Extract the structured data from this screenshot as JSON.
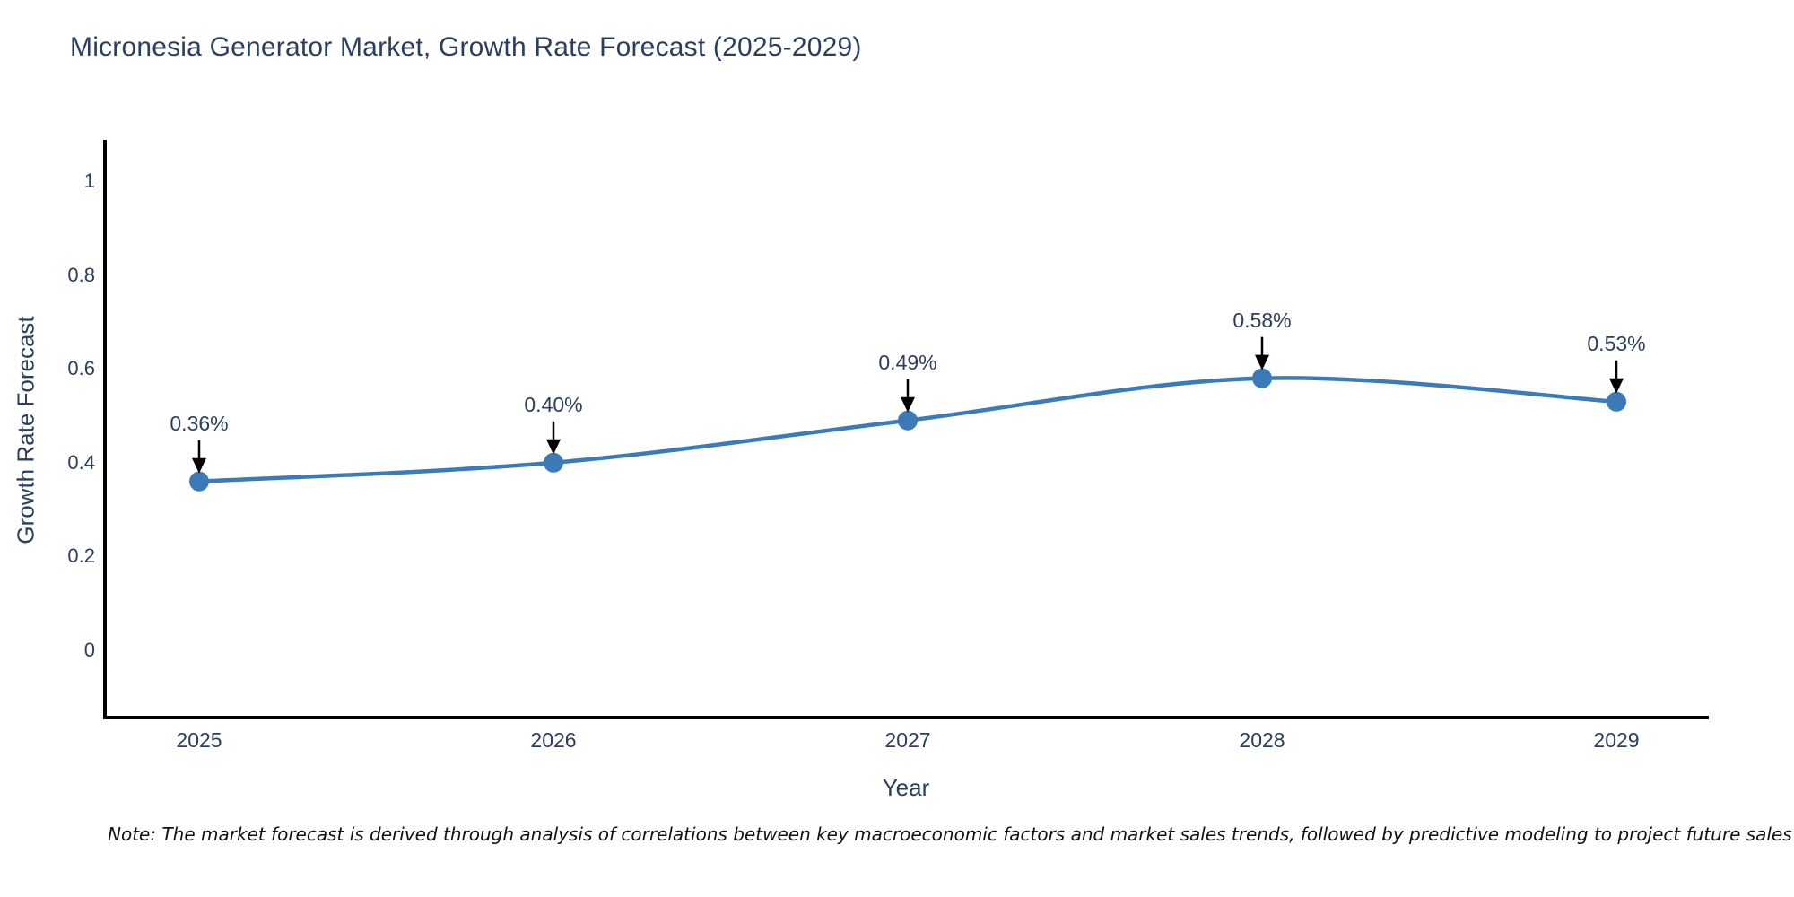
{
  "title": "Micronesia Generator Market, Growth Rate Forecast (2025-2029)",
  "note": "Note: The market forecast is derived through analysis of correlations between key macroeconomic factors and market sales trends, followed by predictive modeling to project future sales",
  "chart_data": {
    "type": "line",
    "title": "Micronesia Generator Market, Growth Rate Forecast (2025-2029)",
    "xlabel": "Year",
    "ylabel": "Growth Rate Forecast",
    "categories": [
      "2025",
      "2026",
      "2027",
      "2028",
      "2029"
    ],
    "x": [
      2025,
      2026,
      2027,
      2028,
      2029
    ],
    "series": [
      {
        "name": "Growth Rate Forecast",
        "values": [
          0.36,
          0.4,
          0.49,
          0.58,
          0.53
        ]
      }
    ],
    "point_labels": [
      "0.36%",
      "0.40%",
      "0.49%",
      "0.58%",
      "0.53%"
    ],
    "ytick_labels": [
      "0",
      "0.2",
      "0.4",
      "0.6",
      "0.8",
      "1"
    ],
    "yticks": [
      0,
      0.2,
      0.4,
      0.6,
      0.8,
      1
    ],
    "ylim": [
      -0.145,
      1.09
    ],
    "grid": false,
    "legend_position": "none",
    "line_shape": "spline",
    "colors": {
      "line": "#3b7cb8",
      "marker": "#3a7ab6",
      "axis": "#000000",
      "text": "#2a3f5f",
      "annotation_arrow": "#000000",
      "note_text": "#111111",
      "background": "#ffffff"
    }
  }
}
